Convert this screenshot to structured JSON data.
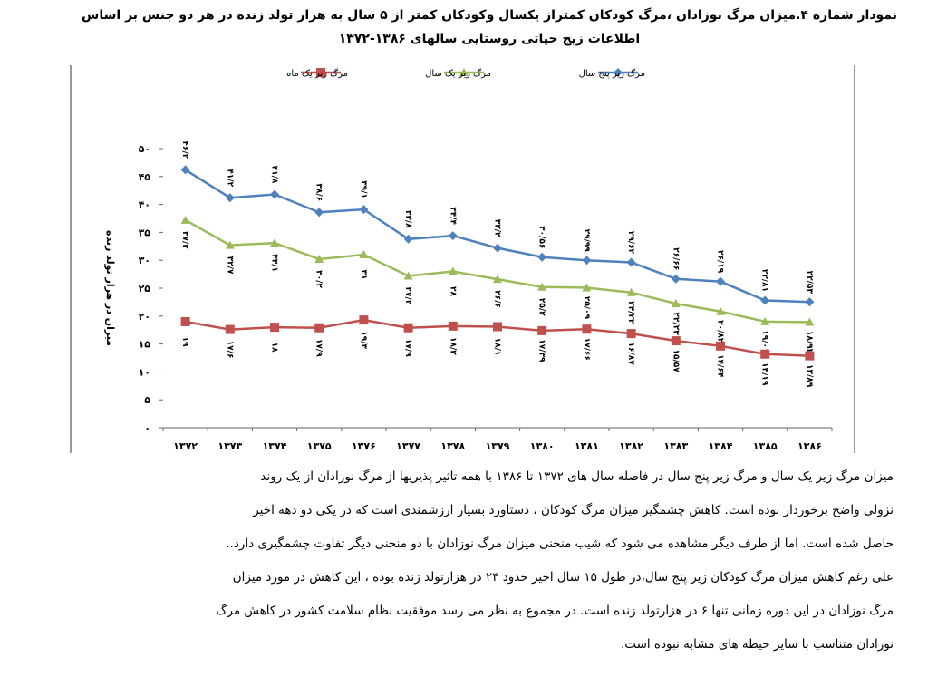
{
  "title": {
    "line1": "نمودار شماره ۴.میزان مرگ نوزادان ،مرگ کودکان کمتراز یکسال وکودکان کمتر از ۵ سال به هزار تولد زنده در هر دو جنس بر اساس",
    "line2": "اطلاعات زیج حیاتی روستایی سالهای ۱۳۸۶-۱۳۷۲"
  },
  "chart_data": {
    "type": "line",
    "x": [
      "۱۳۷۲",
      "۱۳۷۳",
      "۱۳۷۴",
      "۱۳۷۵",
      "۱۳۷۶",
      "۱۳۷۷",
      "۱۳۷۸",
      "۱۳۷۹",
      "۱۳۸۰",
      "۱۳۸۱",
      "۱۳۸۲",
      "۱۳۸۳",
      "۱۳۸۴",
      "۱۳۸۵",
      "۱۳۸۶"
    ],
    "ylabel": "میزان در هزار تولد زنده",
    "ylim": [
      0,
      50
    ],
    "yticks": [
      0,
      5,
      10,
      15,
      20,
      25,
      30,
      35,
      40,
      45,
      50
    ],
    "ytick_labels": [
      "۰",
      "۵",
      "۱۰",
      "۱۵",
      "۲۰",
      "۲۵",
      "۳۰",
      "۳۵",
      "۴۰",
      "۴۵",
      "۵۰"
    ],
    "grid": false,
    "legend_position": "top",
    "series": [
      {
        "name": "مرگ زیر پنج سال",
        "color": "#4F81BD",
        "marker": "diamond",
        "values": [
          46.2,
          41.2,
          41.8,
          38.6,
          39.1,
          33.8,
          34.4,
          32.2,
          30.56,
          29.99,
          29.62,
          26.66,
          26.19,
          22.81,
          22.53
        ],
        "labels": [
          "۴۶/۲",
          "۴۱/۲",
          "۴۱/۸",
          "۳۸/۶",
          "۳۹/۱",
          "۳۳/۸",
          "۳۴/۴",
          "۳۲/۲",
          "۳۰/۵۶",
          "۲۹/۹۹",
          "۲۹/۶۲",
          "۲۶/۶۶",
          "۲۶/۱۹",
          "۲۲/۸۱",
          "۲۲/۵۳"
        ]
      },
      {
        "name": "مرگ زیر یک سال",
        "color": "#9BBB59",
        "marker": "triangle",
        "values": [
          37.2,
          32.7,
          33.1,
          30.2,
          31,
          27.2,
          28,
          26.6,
          25.2,
          25.09,
          24.23,
          22.23,
          20.82,
          19.01,
          18.92
        ],
        "labels": [
          "۳۷/۲",
          "۳۲/۷",
          "۳۳/۱",
          "۳۰/۲",
          "۳۱",
          "۲۷/۲",
          "۲۸",
          "۲۶/۶",
          "۲۵/۲",
          "۲۵/۰۹",
          "۲۴/۲۳",
          "۲۲/۲۳",
          "۲۰/۸۲",
          "۱۹/۰۱",
          "۱۸/۹۲"
        ]
      },
      {
        "name": "مرگ زیر یک ماه",
        "color": "#C0504D",
        "marker": "square",
        "values": [
          19,
          17.6,
          18,
          17.9,
          19.3,
          17.9,
          18.2,
          18.1,
          17.39,
          17.66,
          16.87,
          15.57,
          14.64,
          13.19,
          12.89
        ],
        "labels": [
          "۱۹",
          "۱۷/۶",
          "۱۸",
          "۱۷/۹",
          "۱۹/۳",
          "۱۷/۹",
          "۱۸/۲",
          "۱۸/۱",
          "۱۷/۳۹",
          "۱۷/۶۶",
          "۱۶/۸۷",
          "۱۵/۵۷",
          "۱۴/۶۴",
          "۱۳/۱۹",
          "۱۲/۸۹"
        ]
      }
    ]
  },
  "paragraph": [
    "میزان مرگ زیر یک سال و مرگ زیر پنج سال در فاصله سال های ۱۳۷۲ تا ۱۳۸۶ با همه تاثیر پذیریها از مرگ نوزادان از یک روند",
    "نزولی واضح برخوردار بوده است. کاهش چشمگیر میزان مرگ کودکان ، دستاورد بسیار ارزشمندی است که در یکی دو دهه اخیر",
    "حاصل شده است. اما از طرف دیگر مشاهده می شود که شیب منحنی میزان مرگ نوزادان با دو منحنی دیگر تفاوت چشمگیری دارد..",
    "علی رغم کاهش میزان مرگ کودکان زیر پنج سال،در طول ۱۵ سال اخیر حدود ۲۴ در هزارتولد زنده بوده ، این کاهش در مورد میزان",
    "مرگ نوزادان در این دوره زمانی تنها ۶ در هزارتولد زنده است. در مجموع به نظر می رسد موفقیت نظام سلامت کشور در کاهش مرگ",
    "نوزادان متناسب با سایر حیطه های مشابه نبوده است."
  ]
}
